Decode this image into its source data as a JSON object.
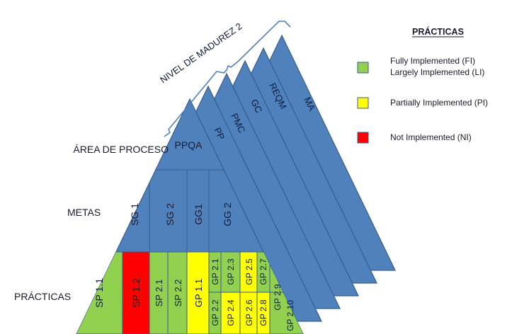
{
  "bracket_label": "NIVEL DE MADUREZ 2",
  "row_labels": {
    "process_area": "ÁREA DE PROCESO",
    "goals": "METAS",
    "practices": "PRÁCTICAS"
  },
  "process_areas": {
    "front": "PPQA",
    "behind": [
      "PP",
      "PMC",
      "GC",
      "REQM",
      "MA"
    ]
  },
  "goals": [
    "SG 1",
    "SG 2",
    "GG1",
    "GG 2"
  ],
  "practices": [
    {
      "id": "SP 1.1",
      "status": "FI"
    },
    {
      "id": "SP 1.2",
      "status": "NI"
    },
    {
      "id": "SP 2.1",
      "status": "FI"
    },
    {
      "id": "SP 2.2",
      "status": "FI"
    },
    {
      "id": "GP 1.1",
      "status": "PI"
    },
    {
      "id": "GP 2.1",
      "status": "FI"
    },
    {
      "id": "GP 2.2",
      "status": "FI"
    },
    {
      "id": "GP 2.3",
      "status": "FI"
    },
    {
      "id": "GP 2.4",
      "status": "PI"
    },
    {
      "id": "GP 2.5",
      "status": "PI"
    },
    {
      "id": "GP 2.6",
      "status": "PI"
    },
    {
      "id": "GP 2.7",
      "status": "FI"
    },
    {
      "id": "GP 2.8",
      "status": "PI"
    },
    {
      "id": "GP 2.9",
      "status": "FI"
    },
    {
      "id": "GP 2.10",
      "status": "FI"
    }
  ],
  "legend": {
    "title": "PRÁCTICAS",
    "items": [
      {
        "color": "#92D050",
        "lines": [
          "Fully Implemented (FI)",
          "Largely Implemented (LI)"
        ]
      },
      {
        "color": "#FFFF00",
        "lines": [
          "Partially Implemented (PI)"
        ]
      },
      {
        "color": "#FF0000",
        "lines": [
          "Not Implemented (NI)"
        ]
      }
    ]
  },
  "colors": {
    "pyramid": "#4F81BD",
    "pyramid_edge": "#385D8A",
    "green": "#92D050",
    "yellow": "#FFFF00",
    "red": "#FF0000",
    "bracket": "#4F81BD"
  }
}
